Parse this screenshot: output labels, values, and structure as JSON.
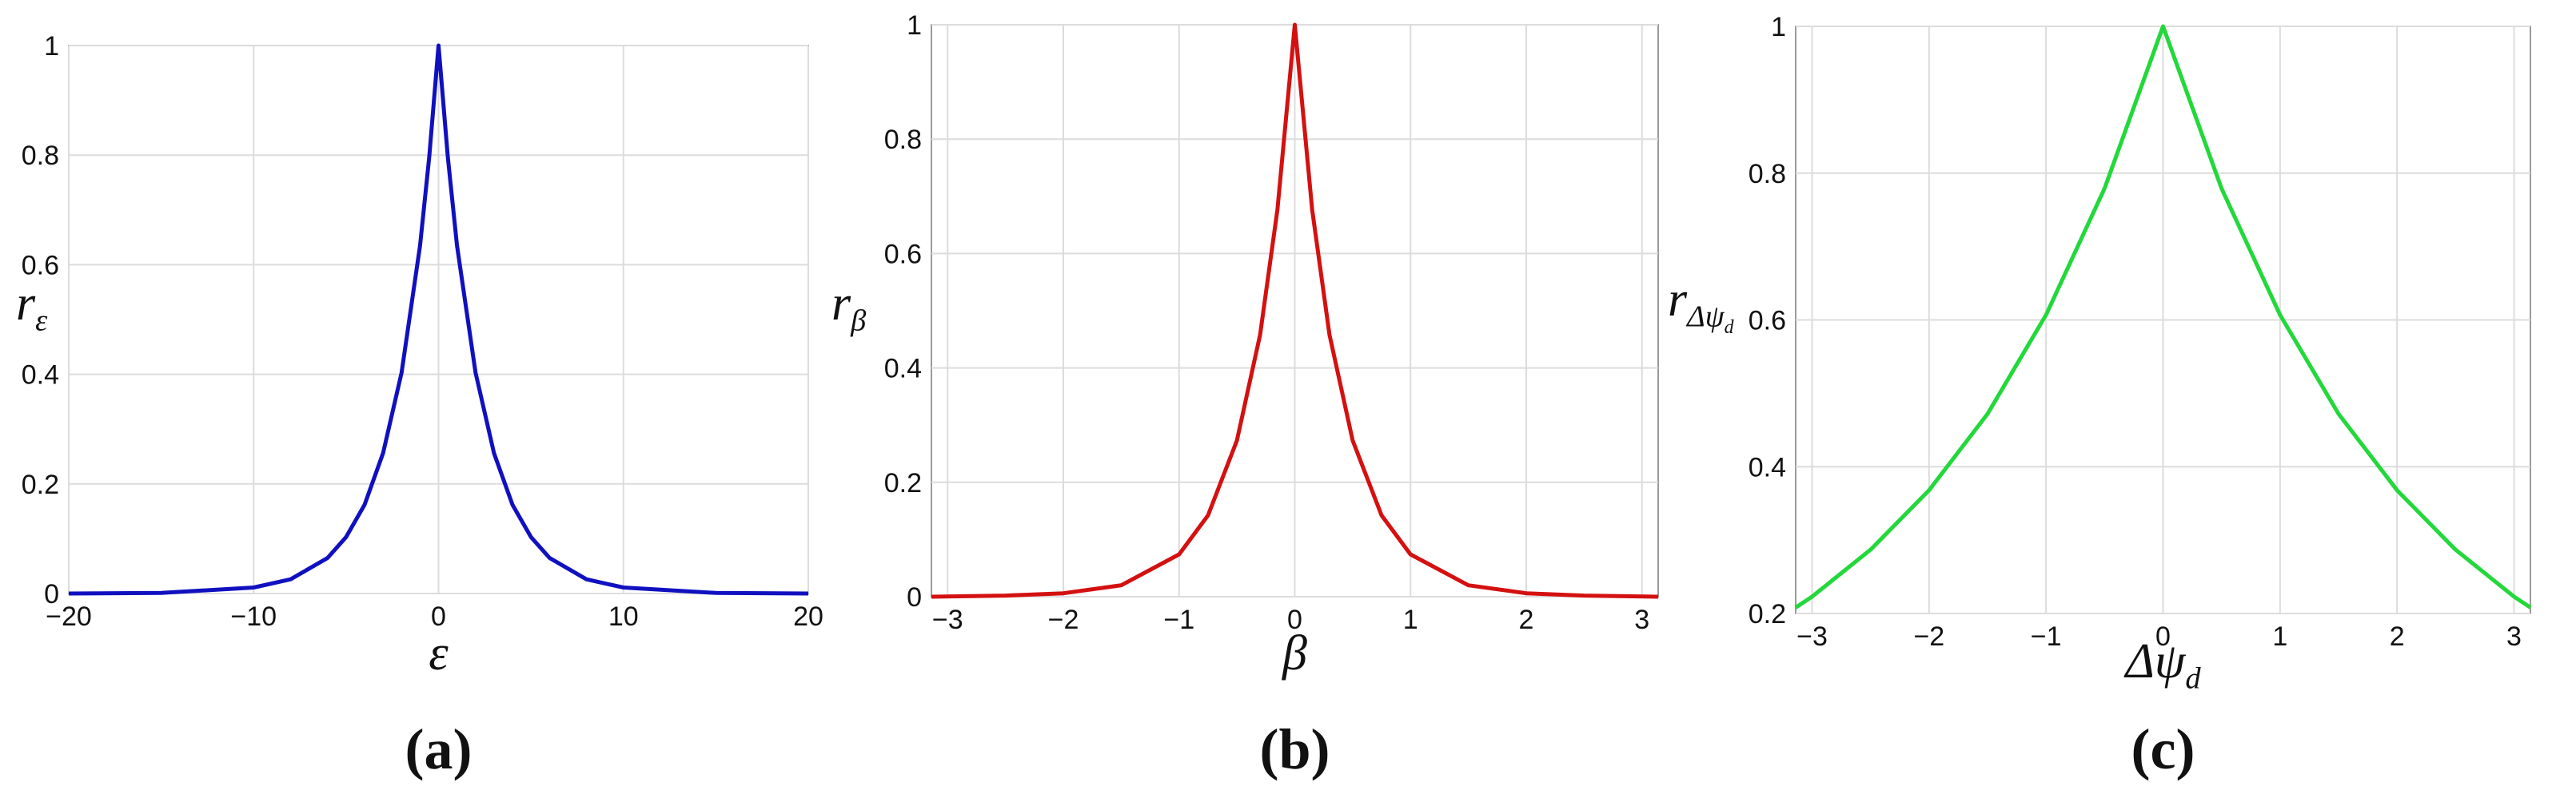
{
  "chart_data": [
    {
      "type": "line",
      "caption": "(a)",
      "x_label": [
        "ε"
      ],
      "y_label": [
        "r",
        "ε"
      ],
      "color": "#1010c0",
      "grid": true,
      "x": [
        -20,
        -15,
        -10,
        -8,
        -6,
        -5,
        -4,
        -3,
        -2,
        -1,
        -0.5,
        0,
        0.5,
        1,
        2,
        3,
        4,
        5,
        6,
        8,
        10,
        15,
        20
      ],
      "values": [
        0,
        0.001,
        0.011,
        0.026,
        0.065,
        0.103,
        0.162,
        0.256,
        0.403,
        0.635,
        0.797,
        1,
        0.797,
        0.635,
        0.403,
        0.256,
        0.162,
        0.103,
        0.065,
        0.026,
        0.011,
        0.001,
        0
      ],
      "xlim": [
        -20,
        20
      ],
      "ylim": [
        0,
        1
      ],
      "xticks": [
        {
          "value": -20,
          "label": "−20"
        },
        {
          "value": -10,
          "label": "−10"
        },
        0,
        10,
        20
      ],
      "yticks": [
        0,
        0.2,
        0.4,
        0.6,
        0.8,
        1
      ]
    },
    {
      "type": "line",
      "caption": "(b)",
      "x_label": [
        "β"
      ],
      "y_label": [
        "r",
        "β"
      ],
      "color": "#d41010",
      "grid": true,
      "x": [
        -3.14,
        -2.5,
        -2,
        -1.5,
        -1,
        -0.75,
        -0.5,
        -0.3,
        -0.15,
        0,
        0.15,
        0.3,
        0.5,
        0.75,
        1,
        1.5,
        2,
        2.5,
        3.14
      ],
      "values": [
        0,
        0.002,
        0.006,
        0.02,
        0.074,
        0.142,
        0.273,
        0.458,
        0.677,
        1,
        0.677,
        0.458,
        0.273,
        0.142,
        0.074,
        0.02,
        0.006,
        0.002,
        0
      ],
      "xlim": [
        -3.14,
        3.14
      ],
      "ylim": [
        0,
        1
      ],
      "xticks": [
        {
          "value": -3,
          "label": "−3"
        },
        {
          "value": -2,
          "label": "−2"
        },
        {
          "value": -1,
          "label": "−1"
        },
        0,
        1,
        2,
        3
      ],
      "yticks": [
        0,
        0.2,
        0.4,
        0.6,
        0.8,
        1
      ]
    },
    {
      "type": "line",
      "caption": "(c)",
      "x_label": [
        "Δψ",
        "d"
      ],
      "y_label": [
        "r",
        "Δψ",
        "d"
      ],
      "color": "#22d83a",
      "grid": true,
      "x": [
        -3.14,
        -3,
        -2.5,
        -2,
        -1.5,
        -1,
        -0.5,
        0,
        0.5,
        1,
        1.5,
        2,
        2.5,
        3,
        3.14
      ],
      "values": [
        0.208,
        0.223,
        0.287,
        0.368,
        0.472,
        0.607,
        0.779,
        1,
        0.779,
        0.607,
        0.472,
        0.368,
        0.287,
        0.223,
        0.208
      ],
      "xlim": [
        -3.14,
        3.14
      ],
      "ylim": [
        0.2,
        1
      ],
      "xticks": [
        {
          "value": -3,
          "label": "−3"
        },
        {
          "value": -2,
          "label": "−2"
        },
        {
          "value": -1,
          "label": "−1"
        },
        0,
        1,
        2,
        3
      ],
      "yticks": [
        0.2,
        0.4,
        0.6,
        0.8,
        1
      ]
    }
  ]
}
